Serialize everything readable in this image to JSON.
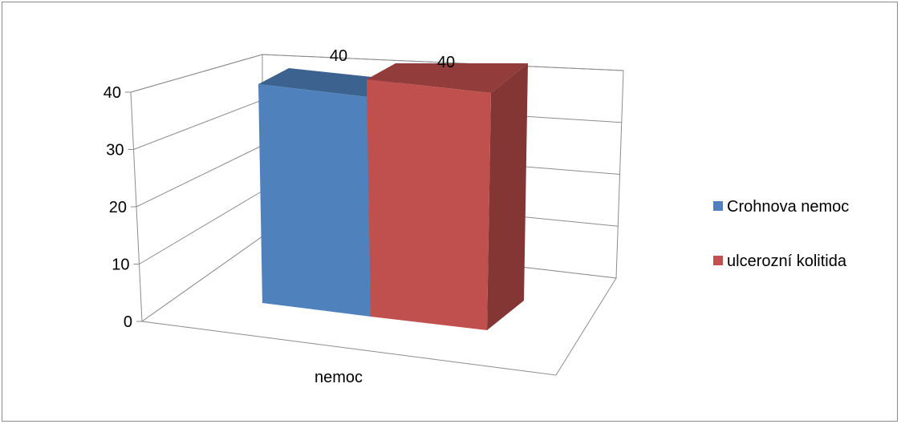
{
  "chart_data": {
    "type": "bar",
    "categories": [
      "nemoc"
    ],
    "series": [
      {
        "name": "Crohnova nemoc",
        "values": [
          40
        ],
        "color": "#4f81bd"
      },
      {
        "name": "ulcerozní kolitida",
        "values": [
          40
        ],
        "color": "#c0504d"
      }
    ],
    "yticks": [
      "0",
      "10",
      "20",
      "30",
      "40"
    ],
    "ylim": [
      0,
      40
    ],
    "data_labels": [
      "40",
      "40"
    ],
    "legend_position": "right",
    "grid": true,
    "three_d": true
  }
}
